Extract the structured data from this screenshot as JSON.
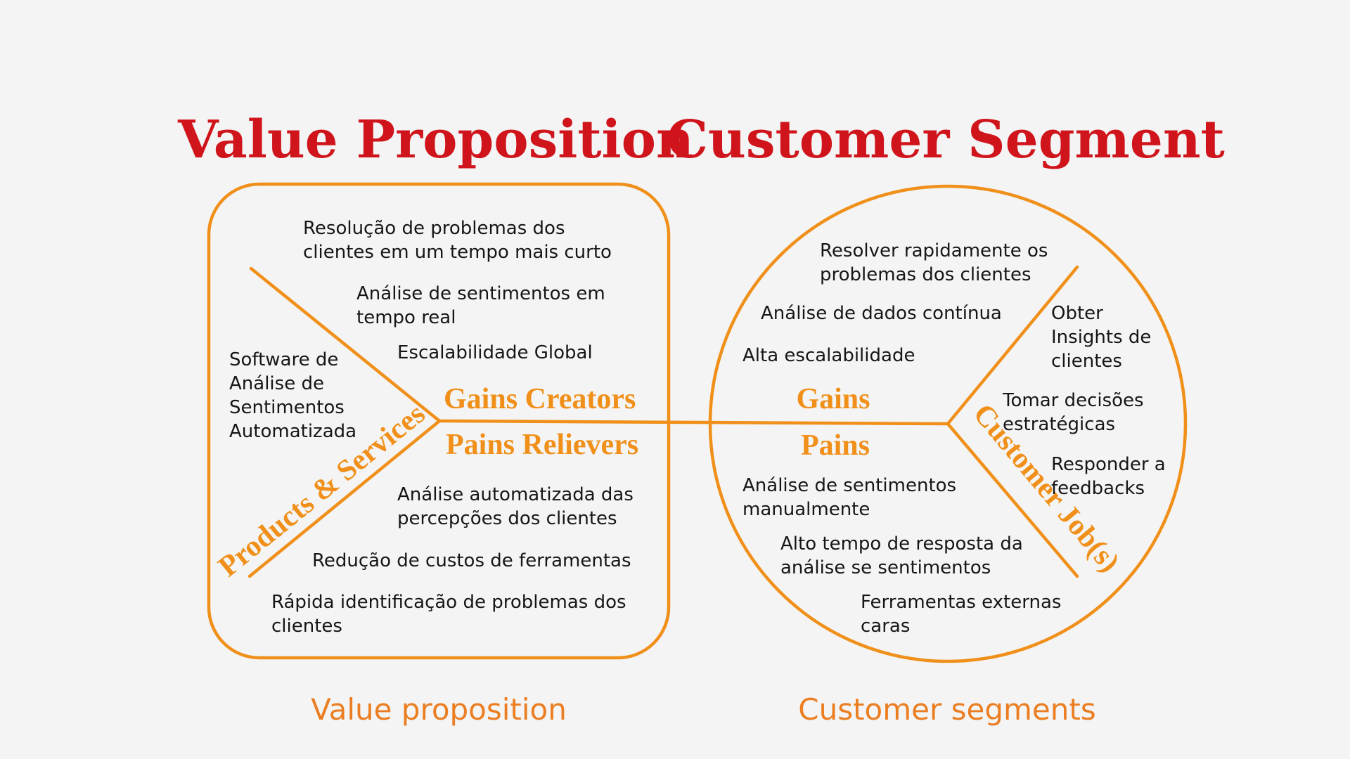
{
  "titles": {
    "value_proposition": "Value Proposition",
    "customer_segment": "Customer Segment"
  },
  "value_proposition": {
    "gains_creators_label": "Gains Creators",
    "pains_relievers_label": "Pains Relievers",
    "products_services_label": "Products & Services",
    "products_services": [
      "Software de",
      "Análise de",
      "Sentimentos",
      "Automatizada"
    ],
    "gains_creators": [
      [
        "Resolução de problemas dos",
        "clientes em um tempo mais curto"
      ],
      [
        "Análise de sentimentos em",
        "tempo real"
      ],
      [
        "Escalabilidade Global"
      ]
    ],
    "pains_relievers": [
      [
        "Análise automatizada das",
        "percepções dos clientes"
      ],
      [
        "Redução de custos de ferramentas"
      ],
      [
        "Rápida identificação de problemas dos",
        "clientes"
      ]
    ]
  },
  "customer_segment": {
    "gains_label": "Gains",
    "pains_label": "Pains",
    "customer_jobs_label": "Customer Job(s)",
    "gains": [
      [
        "Resolver rapidamente os",
        "problemas dos clientes"
      ],
      [
        "Análise de dados contínua"
      ],
      [
        "Alta escalabilidade"
      ]
    ],
    "pains": [
      [
        "Análise de sentimentos",
        "manualmente"
      ],
      [
        "Alto tempo de resposta da",
        "análise se sentimentos"
      ],
      [
        "Ferramentas externas",
        "caras"
      ]
    ],
    "customer_jobs": [
      [
        "Obter",
        "Insights de",
        "clientes"
      ],
      [
        "Tomar decisões",
        "estratégicas"
      ],
      [
        "Responder a",
        "feedbacks"
      ]
    ]
  },
  "footer": {
    "left": "Value proposition",
    "right": "Customer segments"
  },
  "colors": {
    "heading": "#d0141c",
    "accent": "#f0901a",
    "footer": "#eb7e22",
    "text": "#161616",
    "background": "#f4f4f4"
  }
}
